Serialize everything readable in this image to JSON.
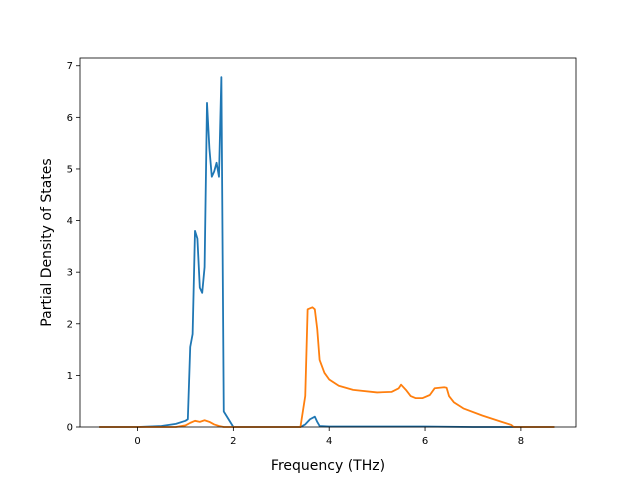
{
  "chart_data": {
    "type": "line",
    "title": "",
    "xlabel": "Frequency (THz)",
    "ylabel": "Partial Density of States",
    "xlim": [
      -1.2,
      9.15
    ],
    "ylim": [
      0,
      7.15
    ],
    "xticks": [
      0,
      2,
      4,
      6,
      8
    ],
    "yticks": [
      0,
      1,
      2,
      3,
      4,
      5,
      6,
      7
    ],
    "grid": false,
    "legend": "none",
    "series": [
      {
        "color": "#1f77b4",
        "x": [
          -0.8,
          0.0,
          0.5,
          0.8,
          1.0,
          1.05,
          1.1,
          1.15,
          1.2,
          1.25,
          1.3,
          1.35,
          1.4,
          1.45,
          1.5,
          1.55,
          1.6,
          1.65,
          1.7,
          1.75,
          1.8,
          2.0,
          3.0,
          3.4,
          3.5,
          3.6,
          3.7,
          3.75,
          3.8,
          4.0,
          5.0,
          6.0,
          7.0,
          8.0,
          8.7
        ],
        "y": [
          0,
          0,
          0.02,
          0.06,
          0.12,
          0.15,
          1.55,
          1.8,
          3.8,
          3.65,
          2.7,
          2.6,
          3.1,
          6.28,
          5.4,
          4.85,
          4.95,
          5.12,
          4.85,
          6.78,
          0.3,
          0.0,
          0.0,
          0.0,
          0.05,
          0.15,
          0.2,
          0.1,
          0.02,
          0.01,
          0.01,
          0.01,
          0.0,
          0.0,
          0.0
        ]
      },
      {
        "color": "#ff7f0e",
        "x": [
          -0.8,
          0.0,
          0.8,
          1.0,
          1.1,
          1.2,
          1.3,
          1.4,
          1.5,
          1.6,
          1.7,
          1.8,
          2.0,
          3.0,
          3.4,
          3.5,
          3.55,
          3.6,
          3.65,
          3.7,
          3.75,
          3.8,
          3.9,
          4.0,
          4.2,
          4.5,
          5.0,
          5.3,
          5.45,
          5.5,
          5.6,
          5.7,
          5.8,
          5.95,
          6.1,
          6.2,
          6.4,
          6.45,
          6.5,
          6.6,
          6.8,
          7.2,
          7.6,
          7.8,
          7.85,
          8.0,
          8.7
        ],
        "y": [
          0,
          0,
          0.0,
          0.03,
          0.08,
          0.12,
          0.1,
          0.13,
          0.1,
          0.05,
          0.02,
          0.0,
          0.0,
          0.0,
          0.0,
          0.6,
          2.28,
          2.3,
          2.32,
          2.28,
          1.9,
          1.3,
          1.05,
          0.92,
          0.8,
          0.72,
          0.67,
          0.68,
          0.75,
          0.82,
          0.72,
          0.6,
          0.56,
          0.56,
          0.62,
          0.75,
          0.77,
          0.76,
          0.6,
          0.48,
          0.36,
          0.22,
          0.1,
          0.04,
          0.0,
          0.0,
          0.0
        ]
      }
    ]
  }
}
